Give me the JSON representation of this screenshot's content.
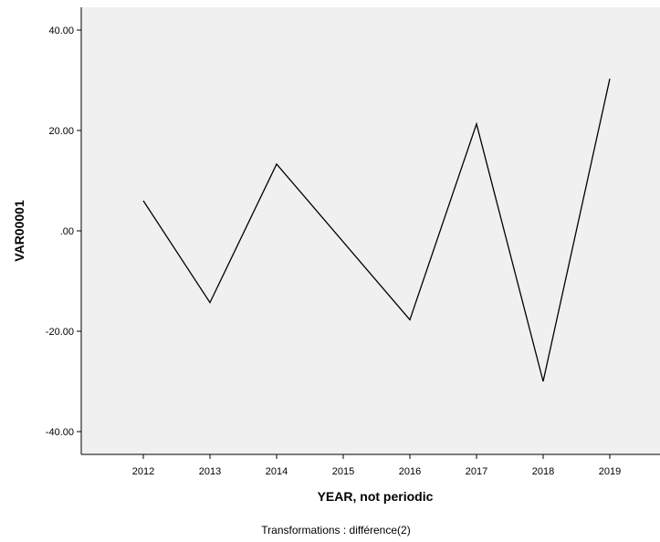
{
  "chart_data": {
    "type": "line",
    "xlabel": "YEAR, not periodic",
    "ylabel": "VAR00001",
    "footnote": "Transformations : différence(2)",
    "categories": [
      "2012",
      "2013",
      "2014",
      "2015",
      "2016",
      "2017",
      "2018",
      "2019"
    ],
    "x_tick_labels": [
      "2012",
      "2013",
      "2014",
      "2015",
      "2016",
      "2017",
      "2018",
      "2019"
    ],
    "y_tick_labels": [
      "40.00",
      "20.00",
      ".00",
      "-20.00",
      "-40.00"
    ],
    "y_ticks": [
      40,
      20,
      0,
      -20,
      -40
    ],
    "ylim": [
      -44.6,
      44.6
    ],
    "grid": false,
    "series": [
      {
        "x": [
          2012,
          2013,
          2014,
          2016,
          2017,
          2018,
          2019
        ],
        "values": [
          6.0,
          -14.3,
          13.3,
          -17.7,
          21.3,
          -30.0,
          30.3
        ]
      }
    ],
    "colors": {
      "plot_background": "#f0f0f0",
      "line": "#000000",
      "axis": "#000000"
    }
  }
}
